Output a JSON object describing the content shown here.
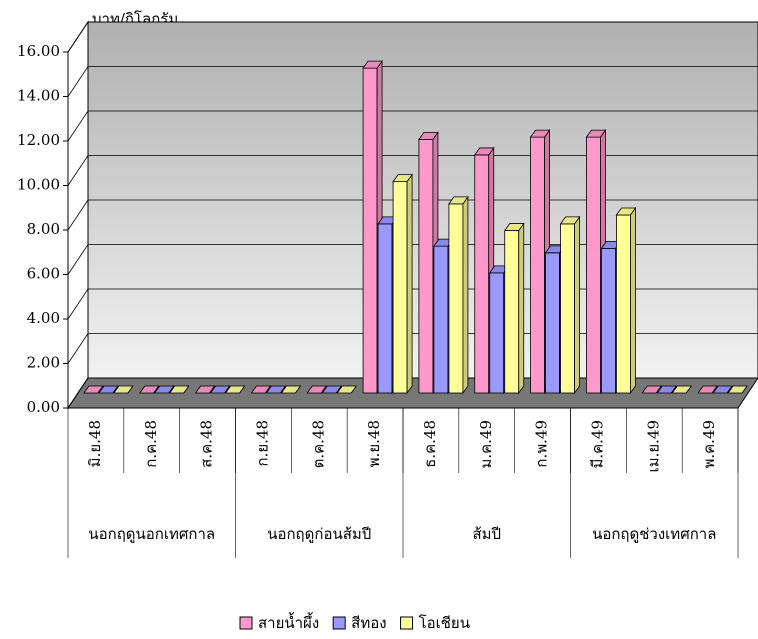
{
  "chart_data": {
    "type": "bar3d",
    "y_axis_label": "บาท/กิโลกรัม",
    "categories": [
      "มิ.ย.48",
      "ก.ค.48",
      "ส.ค.48",
      "ก.ย.48",
      "ต.ค.48",
      "พ.ย.48",
      "ธ.ค.48",
      "ม.ค.49",
      "ก.พ.49",
      "มี.ค.49",
      "เม.ย.49",
      "พ.ค.49"
    ],
    "groups": [
      {
        "label": "นอกฤดูนอกเทศกาล",
        "span": 3
      },
      {
        "label": "นอกฤดูก่อนส้มปี",
        "span": 3
      },
      {
        "label": "ส้มปี",
        "span": 3
      },
      {
        "label": "นอกฤดูช่วงเทศกาล",
        "span": 3
      }
    ],
    "series": [
      {
        "name": "สายน้ำผึ้ง",
        "color": "#ff99cc",
        "values": [
          0,
          0,
          0,
          0,
          0,
          14.6,
          11.4,
          10.7,
          11.5,
          11.5,
          0,
          0
        ]
      },
      {
        "name": "สีทอง",
        "color": "#9999ff",
        "values": [
          0,
          0,
          0,
          0,
          0,
          7.6,
          6.6,
          5.4,
          6.3,
          6.5,
          0,
          0
        ]
      },
      {
        "name": "โอเชียน",
        "color": "#ffff99",
        "values": [
          0,
          0,
          0,
          0,
          0,
          9.5,
          8.5,
          7.3,
          7.6,
          8.0,
          0,
          0
        ]
      }
    ],
    "ylim": [
      0,
      16
    ],
    "yticks": [
      {
        "value": 0,
        "label": "0.00"
      },
      {
        "value": 2,
        "label": "2.00"
      },
      {
        "value": 4,
        "label": "4.00"
      },
      {
        "value": 6,
        "label": "6.00"
      },
      {
        "value": 8,
        "label": "8.00"
      },
      {
        "value": 10,
        "label": "10.00"
      },
      {
        "value": 12,
        "label": "12.00"
      },
      {
        "value": 14,
        "label": "14.00"
      },
      {
        "value": 16,
        "label": "16.00"
      }
    ],
    "grid": true
  }
}
